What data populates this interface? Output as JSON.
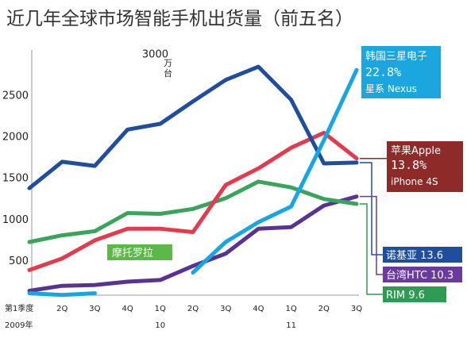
{
  "chart_data": {
    "type": "line",
    "title": "近几年全球市场智能手机出货量（前五名）",
    "y_unit": "万台",
    "yticks": [
      500,
      1000,
      1500,
      2000,
      2500,
      3000
    ],
    "ylim": [
      0,
      3000
    ],
    "xticks": [
      {
        "label": "第1季度",
        "sub": "2009年"
      },
      {
        "label": "2Q",
        "sub": ""
      },
      {
        "label": "3Q",
        "sub": ""
      },
      {
        "label": "4Q",
        "sub": ""
      },
      {
        "label": "1Q",
        "sub": "10"
      },
      {
        "label": "2Q",
        "sub": ""
      },
      {
        "label": "3Q",
        "sub": ""
      },
      {
        "label": "4Q",
        "sub": ""
      },
      {
        "label": "1Q",
        "sub": "11"
      },
      {
        "label": "2Q",
        "sub": ""
      },
      {
        "label": "3Q",
        "sub": ""
      }
    ],
    "series": [
      {
        "key": "nokia",
        "color": "#1f4e9e",
        "values": [
          1370,
          1690,
          1640,
          2080,
          2150,
          2420,
          2680,
          2840,
          2440,
          1670,
          1680
        ]
      },
      {
        "key": "samsung",
        "color": "#16a6e3",
        "values": [
          100,
          80,
          100,
          null,
          null,
          350,
          720,
          960,
          1150,
          1950,
          2800
        ]
      },
      {
        "key": "apple",
        "color": "#e33a4d",
        "values": [
          380,
          520,
          740,
          880,
          880,
          840,
          1410,
          1610,
          1860,
          2040,
          1730
        ]
      },
      {
        "key": "rim",
        "color": "#3aa55a",
        "values": [
          720,
          800,
          850,
          1070,
          1060,
          1120,
          1250,
          1450,
          1380,
          1240,
          1180
        ]
      },
      {
        "key": "htc",
        "color": "#5a3390",
        "values": [
          130,
          190,
          200,
          240,
          260,
          430,
          580,
          880,
          900,
          1160,
          1270
        ]
      }
    ],
    "labels": {
      "samsung": [
        "韩国三星电子",
        "22.8%",
        "星系 Nexus"
      ],
      "apple": [
        "苹果Apple",
        "13.8%",
        "iPhone 4S"
      ],
      "nokia": "诺基亚  13.6",
      "htc": "台湾HTC  10.3",
      "rim": "RIM  9.6",
      "motorola": "摩托罗拉"
    },
    "label_colors": {
      "samsung": "#1ba6e0",
      "apple": "#8e2a27",
      "nokia": "#1f4e9e",
      "htc": "#6a3a9e",
      "rim": "#2e9a52",
      "motorola": "#5cb847"
    }
  }
}
